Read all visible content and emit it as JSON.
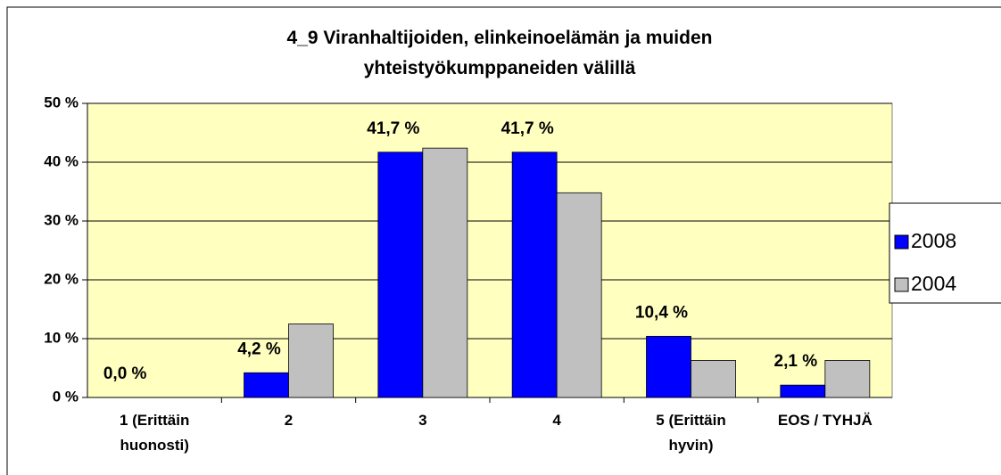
{
  "chart_data": {
    "type": "bar",
    "title": "4_9 Viranhaltijoiden, elinkeinoelämän ja muiden yhteistyökumppaneiden välillä",
    "categories": [
      "1 (Erittäin huonosti)",
      "2",
      "3",
      "4",
      "5 (Erittäin hyvin)",
      "EOS / TYHJÄ"
    ],
    "series": [
      {
        "name": "2008",
        "color": "#0000ff",
        "values": [
          0,
          4.2,
          41.7,
          41.7,
          10.4,
          2.1
        ],
        "value_labels": [
          "0,0 %",
          "4,2 %",
          "41,7 %",
          "41,7 %",
          "10,4 %",
          "2,1 %"
        ]
      },
      {
        "name": "2004",
        "color": "#c0c0c0",
        "values": [
          0,
          12.5,
          42.4,
          34.8,
          6.3,
          6.3
        ]
      }
    ],
    "ylim": [
      0,
      50
    ],
    "yticks": [
      {
        "value": 0,
        "label": "0 %"
      },
      {
        "value": 10,
        "label": "10 %"
      },
      {
        "value": 20,
        "label": "20 %"
      },
      {
        "value": 30,
        "label": "30 %"
      },
      {
        "value": 40,
        "label": "40 %"
      },
      {
        "value": 50,
        "label": "50 %"
      }
    ],
    "grid": true,
    "legend": "right",
    "plot_background": "#ffffc0"
  }
}
